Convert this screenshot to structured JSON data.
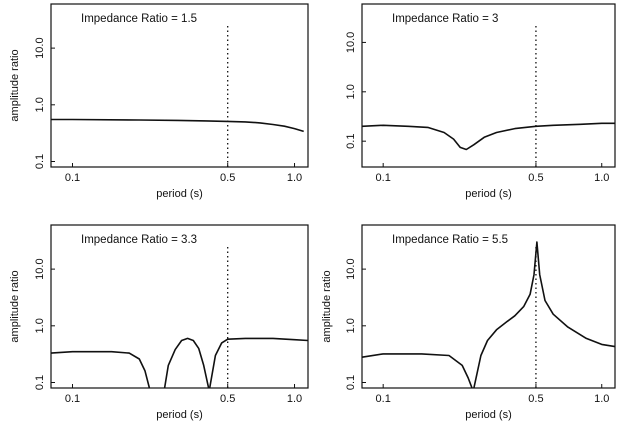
{
  "chart_data": [
    {
      "type": "line",
      "title": "Impedance Ratio = 1.5",
      "xlabel": "period (s)",
      "ylabel": "amplitude ratio",
      "xscale": "log",
      "yscale": "log",
      "xlim": [
        0.08,
        1.15
      ],
      "ylim": [
        0.08,
        60
      ],
      "xticks": [
        0.1,
        0.5,
        1.0
      ],
      "xtick_labels": [
        "0.1",
        "0.5",
        "1.0"
      ],
      "yticks": [
        0.1,
        1.0,
        10.0
      ],
      "ytick_labels": [
        "0.1",
        "1.0",
        "10.0"
      ],
      "marker_line_x": 0.5,
      "ylabel_visible": true,
      "series": [
        {
          "x": [
            0.08,
            0.1,
            0.2,
            0.3,
            0.4,
            0.5,
            0.6,
            0.7,
            0.8,
            0.9,
            1.0,
            1.1
          ],
          "y": [
            0.55,
            0.55,
            0.54,
            0.53,
            0.52,
            0.51,
            0.5,
            0.48,
            0.45,
            0.42,
            0.38,
            0.34
          ]
        }
      ]
    },
    {
      "type": "line",
      "title": "Impedance Ratio = 3",
      "xlabel": "period (s)",
      "ylabel": "amplitude ratio",
      "xscale": "log",
      "yscale": "log",
      "xlim": [
        0.08,
        1.15
      ],
      "ylim": [
        0.03,
        60
      ],
      "xticks": [
        0.1,
        0.5,
        1.0
      ],
      "xtick_labels": [
        "0.1",
        "0.5",
        "1.0"
      ],
      "yticks": [
        0.1,
        1.0,
        10.0
      ],
      "ytick_labels": [
        "0.1",
        "1.0",
        "10.0"
      ],
      "marker_line_x": 0.5,
      "ylabel_visible": false,
      "series": [
        {
          "x": [
            0.08,
            0.1,
            0.13,
            0.16,
            0.19,
            0.21,
            0.225,
            0.24,
            0.26,
            0.29,
            0.33,
            0.4,
            0.5,
            0.6,
            0.8,
            1.0,
            1.15
          ],
          "y": [
            0.2,
            0.21,
            0.2,
            0.19,
            0.15,
            0.11,
            0.075,
            0.068,
            0.085,
            0.12,
            0.15,
            0.18,
            0.2,
            0.21,
            0.22,
            0.23,
            0.23
          ]
        }
      ]
    },
    {
      "type": "line",
      "title": "Impedance Ratio = 3.3",
      "xlabel": "period (s)",
      "ylabel": "amplitude ratio",
      "xscale": "log",
      "yscale": "log",
      "xlim": [
        0.08,
        1.15
      ],
      "ylim": [
        0.08,
        60
      ],
      "xticks": [
        0.1,
        0.5,
        1.0
      ],
      "xtick_labels": [
        "0.1",
        "0.5",
        "1.0"
      ],
      "yticks": [
        0.1,
        1.0,
        10.0
      ],
      "ytick_labels": [
        "0.1",
        "1.0",
        "10.0"
      ],
      "marker_line_x": 0.5,
      "ylabel_visible": true,
      "series": [
        {
          "x": [
            0.08,
            0.1,
            0.15,
            0.18,
            0.2,
            0.212,
            0.222
          ],
          "y": [
            0.33,
            0.35,
            0.35,
            0.33,
            0.26,
            0.16,
            0.08
          ]
        },
        {
          "x": [
            0.26,
            0.27,
            0.29,
            0.31,
            0.33,
            0.35,
            0.37,
            0.39,
            0.41
          ],
          "y": [
            0.08,
            0.2,
            0.38,
            0.55,
            0.6,
            0.55,
            0.4,
            0.2,
            0.08
          ]
        },
        {
          "x": [
            0.415,
            0.44,
            0.47,
            0.5,
            0.6,
            0.8,
            1.0,
            1.15
          ],
          "y": [
            0.08,
            0.3,
            0.5,
            0.58,
            0.6,
            0.6,
            0.57,
            0.55
          ]
        }
      ]
    },
    {
      "type": "line",
      "title": "Impedance Ratio = 5.5",
      "xlabel": "period (s)",
      "ylabel": "amplitude ratio",
      "xscale": "log",
      "yscale": "log",
      "xlim": [
        0.08,
        1.15
      ],
      "ylim": [
        0.08,
        60
      ],
      "xticks": [
        0.1,
        0.5,
        1.0
      ],
      "xtick_labels": [
        "0.1",
        "0.5",
        "1.0"
      ],
      "yticks": [
        0.1,
        1.0,
        10.0
      ],
      "ytick_labels": [
        "0.1",
        "1.0",
        "10.0"
      ],
      "marker_line_x": 0.5,
      "ylabel_visible": true,
      "series": [
        {
          "x": [
            0.08,
            0.1,
            0.15,
            0.2,
            0.23,
            0.245,
            0.255
          ],
          "y": [
            0.28,
            0.32,
            0.32,
            0.3,
            0.2,
            0.12,
            0.08
          ]
        },
        {
          "x": [
            0.26,
            0.28,
            0.3,
            0.33,
            0.37,
            0.4,
            0.44,
            0.47,
            0.49,
            0.505,
            0.52,
            0.55,
            0.6,
            0.7,
            0.85,
            1.0,
            1.15
          ],
          "y": [
            0.08,
            0.3,
            0.55,
            0.85,
            1.2,
            1.5,
            2.2,
            3.6,
            8.0,
            30.0,
            8.0,
            2.8,
            1.6,
            0.95,
            0.6,
            0.47,
            0.43
          ]
        }
      ]
    }
  ]
}
